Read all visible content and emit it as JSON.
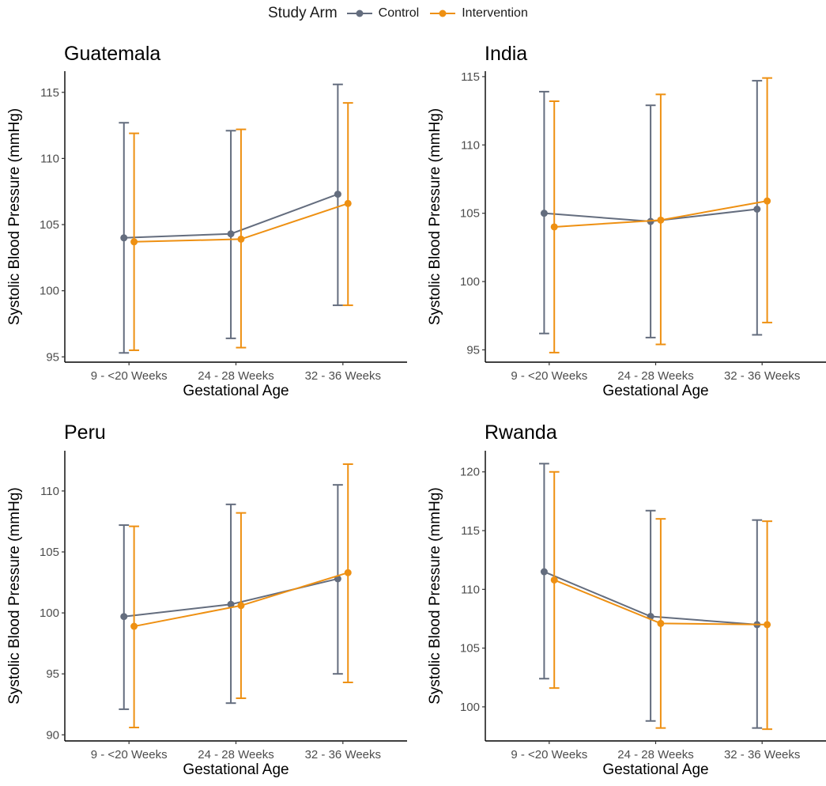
{
  "legend": {
    "title": "Study Arm",
    "entries": [
      {
        "name": "Control",
        "color": "#646d7e"
      },
      {
        "name": "Intervention",
        "color": "#ee9012"
      }
    ]
  },
  "chart_data": [
    {
      "type": "line",
      "title": "Guatemala",
      "xlabel": "Gestational Age",
      "ylabel": "Systolic Blood Pressure (mmHg)",
      "categories": [
        "9 - <20 Weeks",
        "24 - 28 Weeks",
        "32 - 36 Weeks"
      ],
      "ylim": [
        94.6,
        116.6
      ],
      "yticks": [
        95,
        100,
        105,
        110,
        115
      ],
      "grid": false,
      "series": [
        {
          "name": "Control",
          "color": "#646d7e",
          "values": [
            104.0,
            104.3,
            107.3
          ],
          "lower": [
            95.3,
            96.4,
            98.9
          ],
          "upper": [
            112.7,
            112.1,
            115.6
          ]
        },
        {
          "name": "Intervention",
          "color": "#ee9012",
          "values": [
            103.7,
            103.9,
            106.6
          ],
          "lower": [
            95.5,
            95.7,
            98.9
          ],
          "upper": [
            111.9,
            112.2,
            114.2
          ]
        }
      ]
    },
    {
      "type": "line",
      "title": "India",
      "xlabel": "Gestational Age",
      "ylabel": "Systolic Blood Pressure (mmHg)",
      "categories": [
        "9 - <20 Weeks",
        "24 - 28 Weeks",
        "32 - 36 Weeks"
      ],
      "ylim": [
        94.1,
        115.4
      ],
      "yticks": [
        95,
        100,
        105,
        110,
        115
      ],
      "grid": false,
      "series": [
        {
          "name": "Control",
          "color": "#646d7e",
          "values": [
            105.0,
            104.4,
            105.3
          ],
          "lower": [
            96.2,
            95.9,
            96.1
          ],
          "upper": [
            113.9,
            112.9,
            114.7
          ]
        },
        {
          "name": "Intervention",
          "color": "#ee9012",
          "values": [
            104.0,
            104.5,
            105.9
          ],
          "lower": [
            94.8,
            95.4,
            97.0
          ],
          "upper": [
            113.2,
            113.7,
            114.9
          ]
        }
      ]
    },
    {
      "type": "line",
      "title": "Peru",
      "xlabel": "Gestational Age",
      "ylabel": "Systolic Blood Pressure (mmHg)",
      "categories": [
        "9 - <20 Weeks",
        "24 - 28 Weeks",
        "32 - 36 Weeks"
      ],
      "ylim": [
        89.5,
        113.3
      ],
      "yticks": [
        90,
        95,
        100,
        105,
        110
      ],
      "grid": false,
      "series": [
        {
          "name": "Control",
          "color": "#646d7e",
          "values": [
            99.7,
            100.7,
            102.8
          ],
          "lower": [
            92.1,
            92.6,
            95.0
          ],
          "upper": [
            107.2,
            108.9,
            110.5
          ]
        },
        {
          "name": "Intervention",
          "color": "#ee9012",
          "values": [
            98.9,
            100.6,
            103.3
          ],
          "lower": [
            90.6,
            93.0,
            94.3
          ],
          "upper": [
            107.1,
            108.2,
            112.2
          ]
        }
      ]
    },
    {
      "type": "line",
      "title": "Rwanda",
      "xlabel": "Gestational Age",
      "ylabel": "Systolic Blood Pressure (mmHg)",
      "categories": [
        "9 - <20 Weeks",
        "24 - 28 Weeks",
        "32 - 36 Weeks"
      ],
      "ylim": [
        97.1,
        121.8
      ],
      "yticks": [
        100,
        105,
        110,
        115,
        120
      ],
      "grid": false,
      "series": [
        {
          "name": "Control",
          "color": "#646d7e",
          "values": [
            111.5,
            107.7,
            107.0
          ],
          "lower": [
            102.4,
            98.8,
            98.2
          ],
          "upper": [
            120.7,
            116.7,
            115.9
          ]
        },
        {
          "name": "Intervention",
          "color": "#ee9012",
          "values": [
            110.8,
            107.1,
            107.0
          ],
          "lower": [
            101.6,
            98.2,
            98.1
          ],
          "upper": [
            120.0,
            116.0,
            115.8
          ]
        }
      ]
    }
  ]
}
